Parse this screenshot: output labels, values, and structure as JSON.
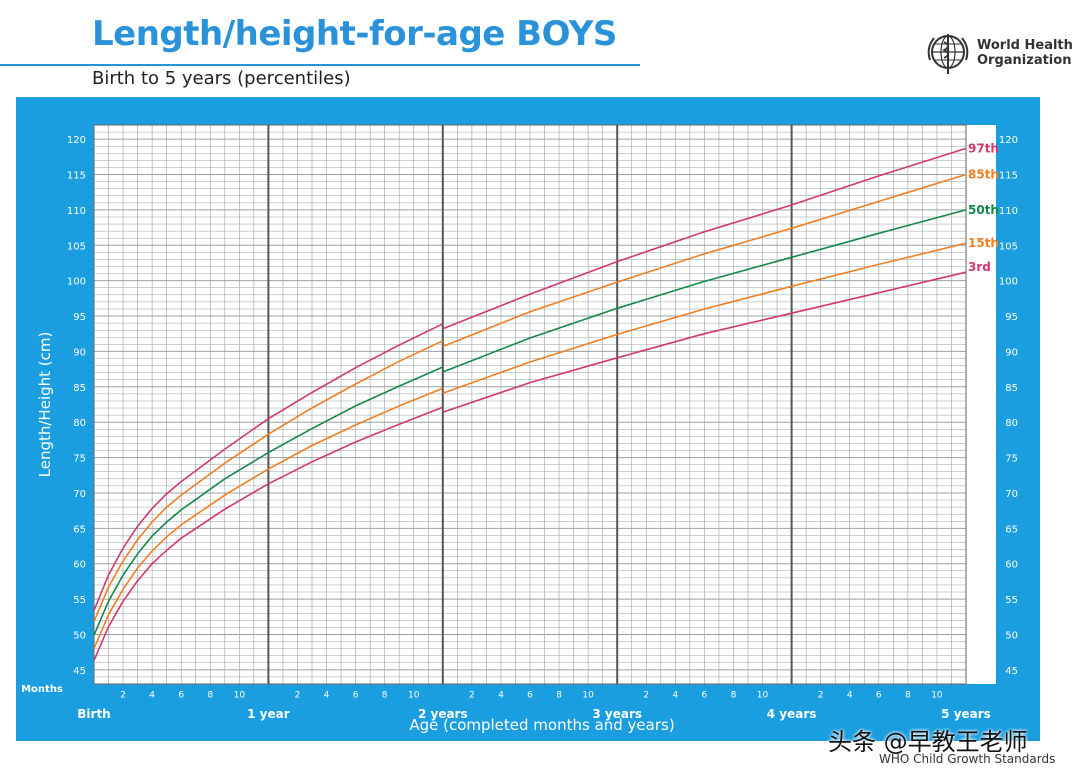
{
  "header": {
    "title": "Length/height-for-age BOYS",
    "subtitle": "Birth to 5 years (percentiles)",
    "org_line1": "World Health",
    "org_line2": "Organization"
  },
  "footer": {
    "credit": "WHO Child Growth Standards",
    "watermark": "头条 @早教王老师"
  },
  "colors": {
    "panel": "#1a9ee0",
    "grid": "#9aa0a6",
    "year_line": "#555555",
    "p3": "#d2386e",
    "p15": "#ef7f22",
    "p50": "#14884a",
    "p85": "#ef7f22",
    "p97": "#d2386e"
  },
  "chart_data": {
    "type": "line",
    "title": "Length/height-for-age BOYS",
    "subtitle": "Birth to 5 years (percentiles)",
    "xlabel": "Age (completed months and years)",
    "ylabel": "Length/Height (cm)",
    "x_unit_label": "Months",
    "x_range_months": [
      0,
      60
    ],
    "ylim": [
      43,
      122
    ],
    "y_ticks": [
      45,
      50,
      55,
      60,
      65,
      70,
      75,
      80,
      85,
      90,
      95,
      100,
      105,
      110,
      115,
      120
    ],
    "month_tick_labels": [
      "2",
      "4",
      "6",
      "8",
      "10"
    ],
    "year_labels": [
      {
        "month": 0,
        "label": "Birth"
      },
      {
        "month": 12,
        "label": "1 year"
      },
      {
        "month": 24,
        "label": "2 years"
      },
      {
        "month": 36,
        "label": "3 years"
      },
      {
        "month": 48,
        "label": "4 years"
      },
      {
        "month": 60,
        "label": "5 years"
      }
    ],
    "grid": true,
    "x": [
      0,
      1,
      2,
      3,
      4,
      5,
      6,
      9,
      12,
      15,
      18,
      21,
      24,
      24,
      30,
      36,
      42,
      48,
      54,
      60
    ],
    "series": [
      {
        "name": "97th",
        "color": "#d2386e",
        "values": [
          53.4,
          58.4,
          62.2,
          65.3,
          67.8,
          69.9,
          71.6,
          76.2,
          80.5,
          84.2,
          87.7,
          90.9,
          93.9,
          93.2,
          98.1,
          102.7,
          106.9,
          110.7,
          114.8,
          118.7
        ]
      },
      {
        "name": "85th",
        "color": "#ef7f22",
        "values": [
          51.8,
          56.7,
          60.4,
          63.4,
          65.9,
          68.0,
          69.7,
          74.2,
          78.3,
          82.0,
          85.4,
          88.6,
          91.5,
          90.7,
          95.6,
          99.8,
          103.8,
          107.4,
          111.2,
          115.0
        ]
      },
      {
        "name": "50th",
        "color": "#14884a",
        "values": [
          49.9,
          54.7,
          58.4,
          61.4,
          63.9,
          65.9,
          67.6,
          72.0,
          75.7,
          79.1,
          82.3,
          85.1,
          87.8,
          87.1,
          91.9,
          96.1,
          99.9,
          103.3,
          106.7,
          110.0
        ]
      },
      {
        "name": "15th",
        "color": "#ef7f22",
        "values": [
          48.0,
          52.8,
          56.4,
          59.4,
          61.8,
          63.8,
          65.5,
          69.7,
          73.4,
          76.7,
          79.6,
          82.3,
          84.8,
          84.1,
          88.5,
          92.4,
          96.0,
          99.2,
          102.3,
          105.3
        ]
      },
      {
        "name": "3rd",
        "color": "#d2386e",
        "values": [
          46.3,
          51.1,
          54.7,
          57.6,
          60.0,
          61.9,
          63.6,
          67.7,
          71.3,
          74.4,
          77.2,
          79.7,
          82.1,
          81.4,
          85.6,
          89.1,
          92.5,
          95.4,
          98.3,
          101.2
        ]
      }
    ]
  }
}
